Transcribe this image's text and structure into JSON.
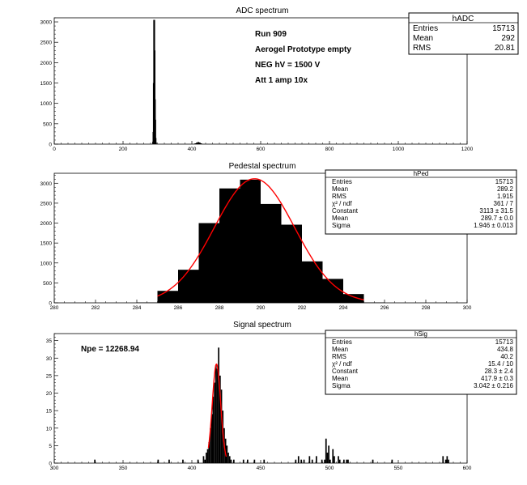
{
  "chart_data": [
    {
      "type": "bar",
      "title": "ADC spectrum",
      "xlim": [
        0,
        1200
      ],
      "ylim": [
        0,
        3100
      ],
      "xticks": [
        0,
        200,
        400,
        600,
        800,
        1000,
        1200
      ],
      "yticks": [
        0,
        500,
        1000,
        1500,
        2000,
        2500,
        3000
      ],
      "bins": [
        {
          "x": 287,
          "y": 60
        },
        {
          "x": 288,
          "y": 300
        },
        {
          "x": 289,
          "y": 1500
        },
        {
          "x": 290,
          "y": 3050
        },
        {
          "x": 291,
          "y": 2300
        },
        {
          "x": 292,
          "y": 1100
        },
        {
          "x": 293,
          "y": 600
        },
        {
          "x": 294,
          "y": 150
        },
        {
          "x": 295,
          "y": 40
        },
        {
          "x": 410,
          "y": 20
        },
        {
          "x": 414,
          "y": 35
        },
        {
          "x": 418,
          "y": 50
        },
        {
          "x": 422,
          "y": 40
        },
        {
          "x": 426,
          "y": 20
        },
        {
          "x": 500,
          "y": 10
        }
      ],
      "annotations": [
        "Run  909",
        "Aerogel Prototype empty",
        "NEG hV = 1500 V",
        "Att 1 amp 10x"
      ],
      "stats": {
        "title": "hADC",
        "rows": [
          {
            "label": "Entries",
            "value": "15713"
          },
          {
            "label": "Mean",
            "value": "292"
          },
          {
            "label": "RMS",
            "value": "20.81"
          }
        ]
      }
    },
    {
      "type": "bar",
      "title": "Pedestal spectrum",
      "xlim": [
        280,
        300
      ],
      "ylim": [
        0,
        3250
      ],
      "xticks": [
        280,
        282,
        284,
        286,
        288,
        290,
        292,
        294,
        296,
        298,
        300
      ],
      "yticks": [
        0,
        500,
        1000,
        1500,
        2000,
        2500,
        3000
      ],
      "bin_width": 1,
      "bins": [
        {
          "x": 284,
          "y": 10
        },
        {
          "x": 285,
          "y": 300
        },
        {
          "x": 286,
          "y": 830
        },
        {
          "x": 287,
          "y": 2000
        },
        {
          "x": 288,
          "y": 2870
        },
        {
          "x": 289,
          "y": 3090
        },
        {
          "x": 290,
          "y": 2480
        },
        {
          "x": 291,
          "y": 1960
        },
        {
          "x": 292,
          "y": 1040
        },
        {
          "x": 293,
          "y": 600
        },
        {
          "x": 294,
          "y": 220
        },
        {
          "x": 295,
          "y": 10
        }
      ],
      "fit": {
        "type": "gaus",
        "constant": 3113,
        "mean": 289.7,
        "sigma": 1.946,
        "range": [
          285,
          295
        ],
        "color": "#ff0000"
      },
      "stats": {
        "title": "hPed",
        "rows": [
          {
            "label": "Entries",
            "value": "15713"
          },
          {
            "label": "Mean",
            "value": "289.2"
          },
          {
            "label": "RMS",
            "value": "1.915"
          },
          {
            "label": "χ² / ndf",
            "value": "361 / 7"
          },
          {
            "label": "Constant",
            "value": "3113 ± 31.5"
          },
          {
            "label": "Mean",
            "value": "289.7 ± 0.0"
          },
          {
            "label": "Sigma",
            "value": "1.946 ± 0.013"
          }
        ]
      }
    },
    {
      "type": "bar",
      "title": "Signal spectrum",
      "xlim": [
        300,
        600
      ],
      "ylim": [
        0,
        37
      ],
      "xticks": [
        300,
        350,
        400,
        450,
        500,
        550,
        600
      ],
      "yticks": [
        0,
        5,
        10,
        15,
        20,
        25,
        30,
        35
      ],
      "bin_width": 1,
      "bins": [
        {
          "x": 329,
          "y": 1
        },
        {
          "x": 375,
          "y": 1
        },
        {
          "x": 383,
          "y": 1
        },
        {
          "x": 393,
          "y": 1
        },
        {
          "x": 404,
          "y": 1
        },
        {
          "x": 408,
          "y": 2
        },
        {
          "x": 409,
          "y": 1
        },
        {
          "x": 410,
          "y": 3
        },
        {
          "x": 411,
          "y": 4
        },
        {
          "x": 412,
          "y": 6
        },
        {
          "x": 413,
          "y": 10
        },
        {
          "x": 414,
          "y": 14
        },
        {
          "x": 415,
          "y": 19
        },
        {
          "x": 416,
          "y": 23
        },
        {
          "x": 417,
          "y": 28
        },
        {
          "x": 418,
          "y": 27
        },
        {
          "x": 419,
          "y": 33
        },
        {
          "x": 420,
          "y": 25
        },
        {
          "x": 421,
          "y": 21
        },
        {
          "x": 422,
          "y": 15
        },
        {
          "x": 423,
          "y": 10
        },
        {
          "x": 424,
          "y": 7
        },
        {
          "x": 425,
          "y": 5
        },
        {
          "x": 426,
          "y": 3
        },
        {
          "x": 427,
          "y": 2
        },
        {
          "x": 428,
          "y": 1
        },
        {
          "x": 430,
          "y": 1
        },
        {
          "x": 437,
          "y": 1
        },
        {
          "x": 440,
          "y": 1
        },
        {
          "x": 445,
          "y": 1
        },
        {
          "x": 452,
          "y": 1
        },
        {
          "x": 475,
          "y": 1
        },
        {
          "x": 477,
          "y": 2
        },
        {
          "x": 479,
          "y": 1
        },
        {
          "x": 481,
          "y": 1
        },
        {
          "x": 485,
          "y": 2
        },
        {
          "x": 487,
          "y": 1
        },
        {
          "x": 490,
          "y": 2
        },
        {
          "x": 494,
          "y": 1
        },
        {
          "x": 496,
          "y": 1
        },
        {
          "x": 497,
          "y": 7
        },
        {
          "x": 498,
          "y": 3
        },
        {
          "x": 499,
          "y": 5
        },
        {
          "x": 500,
          "y": 1
        },
        {
          "x": 502,
          "y": 4
        },
        {
          "x": 503,
          "y": 2
        },
        {
          "x": 506,
          "y": 2
        },
        {
          "x": 507,
          "y": 1
        },
        {
          "x": 510,
          "y": 1
        },
        {
          "x": 512,
          "y": 1
        },
        {
          "x": 513,
          "y": 1
        },
        {
          "x": 531,
          "y": 1
        },
        {
          "x": 545,
          "y": 1
        },
        {
          "x": 582,
          "y": 2
        },
        {
          "x": 584,
          "y": 1
        },
        {
          "x": 585,
          "y": 2
        },
        {
          "x": 586,
          "y": 1
        }
      ],
      "fit": {
        "type": "gaus",
        "constant": 28.3,
        "mean": 417.9,
        "sigma": 3.042,
        "range": [
          412,
          425
        ],
        "color": "#ff0000"
      },
      "annotation": "Npe = 12268.94",
      "stats": {
        "title": "hSig",
        "rows": [
          {
            "label": "Entries",
            "value": "15713"
          },
          {
            "label": "Mean",
            "value": "434.8"
          },
          {
            "label": "RMS",
            "value": "40.2"
          },
          {
            "label": "χ² / ndf",
            "value": "15.4 / 10"
          },
          {
            "label": "Constant",
            "value": "28.3 ± 2.4"
          },
          {
            "label": "Mean",
            "value": "417.9 ± 0.3"
          },
          {
            "label": "Sigma",
            "value": "3.042 ± 0.216"
          }
        ]
      }
    }
  ]
}
